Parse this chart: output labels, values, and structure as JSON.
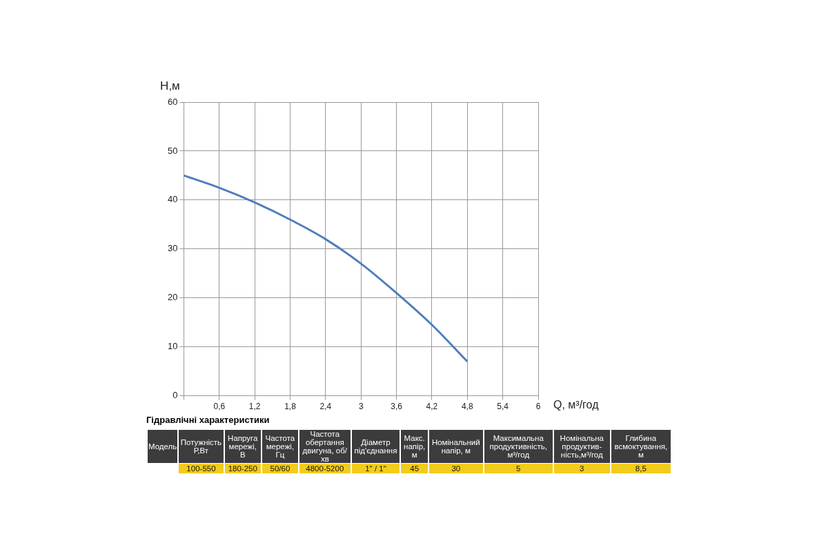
{
  "chart_data": {
    "type": "line",
    "xlabel": "Q, м³/год",
    "ylabel": "Н,м",
    "x": [
      0,
      0.6,
      1.2,
      1.8,
      2.4,
      3,
      3.6,
      4.2,
      4.8
    ],
    "series": [
      {
        "color": "#4f7ebb",
        "values": [
          45,
          42.5,
          39.5,
          36,
          32,
          27,
          21,
          14.5,
          7
        ]
      }
    ],
    "xlim": [
      0,
      6
    ],
    "xticks": [
      {
        "value": 0,
        "label": null
      },
      {
        "value": 0.6,
        "label": "0,6"
      },
      {
        "value": 1.2,
        "label": "1,2"
      },
      {
        "value": 1.8,
        "label": "1,8"
      },
      {
        "value": 2.4,
        "label": "2,4"
      },
      3,
      {
        "value": 3.6,
        "label": "3,6"
      },
      {
        "value": 4.2,
        "label": "4,2"
      },
      {
        "value": 4.8,
        "label": "4,8"
      },
      {
        "value": 5.4,
        "label": "5,4"
      },
      6
    ],
    "ylim": [
      0,
      60
    ],
    "yticks": [
      0,
      10,
      20,
      30,
      40,
      50,
      60
    ],
    "grid": true,
    "marker": "none",
    "line_style": "solid",
    "annotations": [
      "Гідравлічні характеристики",
      "Модель",
      "Потужність Р,Вт",
      "Напруга мережі, В",
      "Частота мережі, Гц",
      "Частота обертання двигуна, об/хв",
      "Діаметр під'єднання",
      "Макс. напір, м",
      "Номінальний напір, м",
      "Максимальна продуктивність, м³/год",
      "Номінальна продуктив-ність,м³/год",
      "Глибина всмоктування, м",
      "100-550",
      "180-250",
      "50/60",
      "4800-5200",
      "1\" / 1\"",
      "45",
      "30",
      "5",
      "3",
      "8,5"
    ]
  }
}
